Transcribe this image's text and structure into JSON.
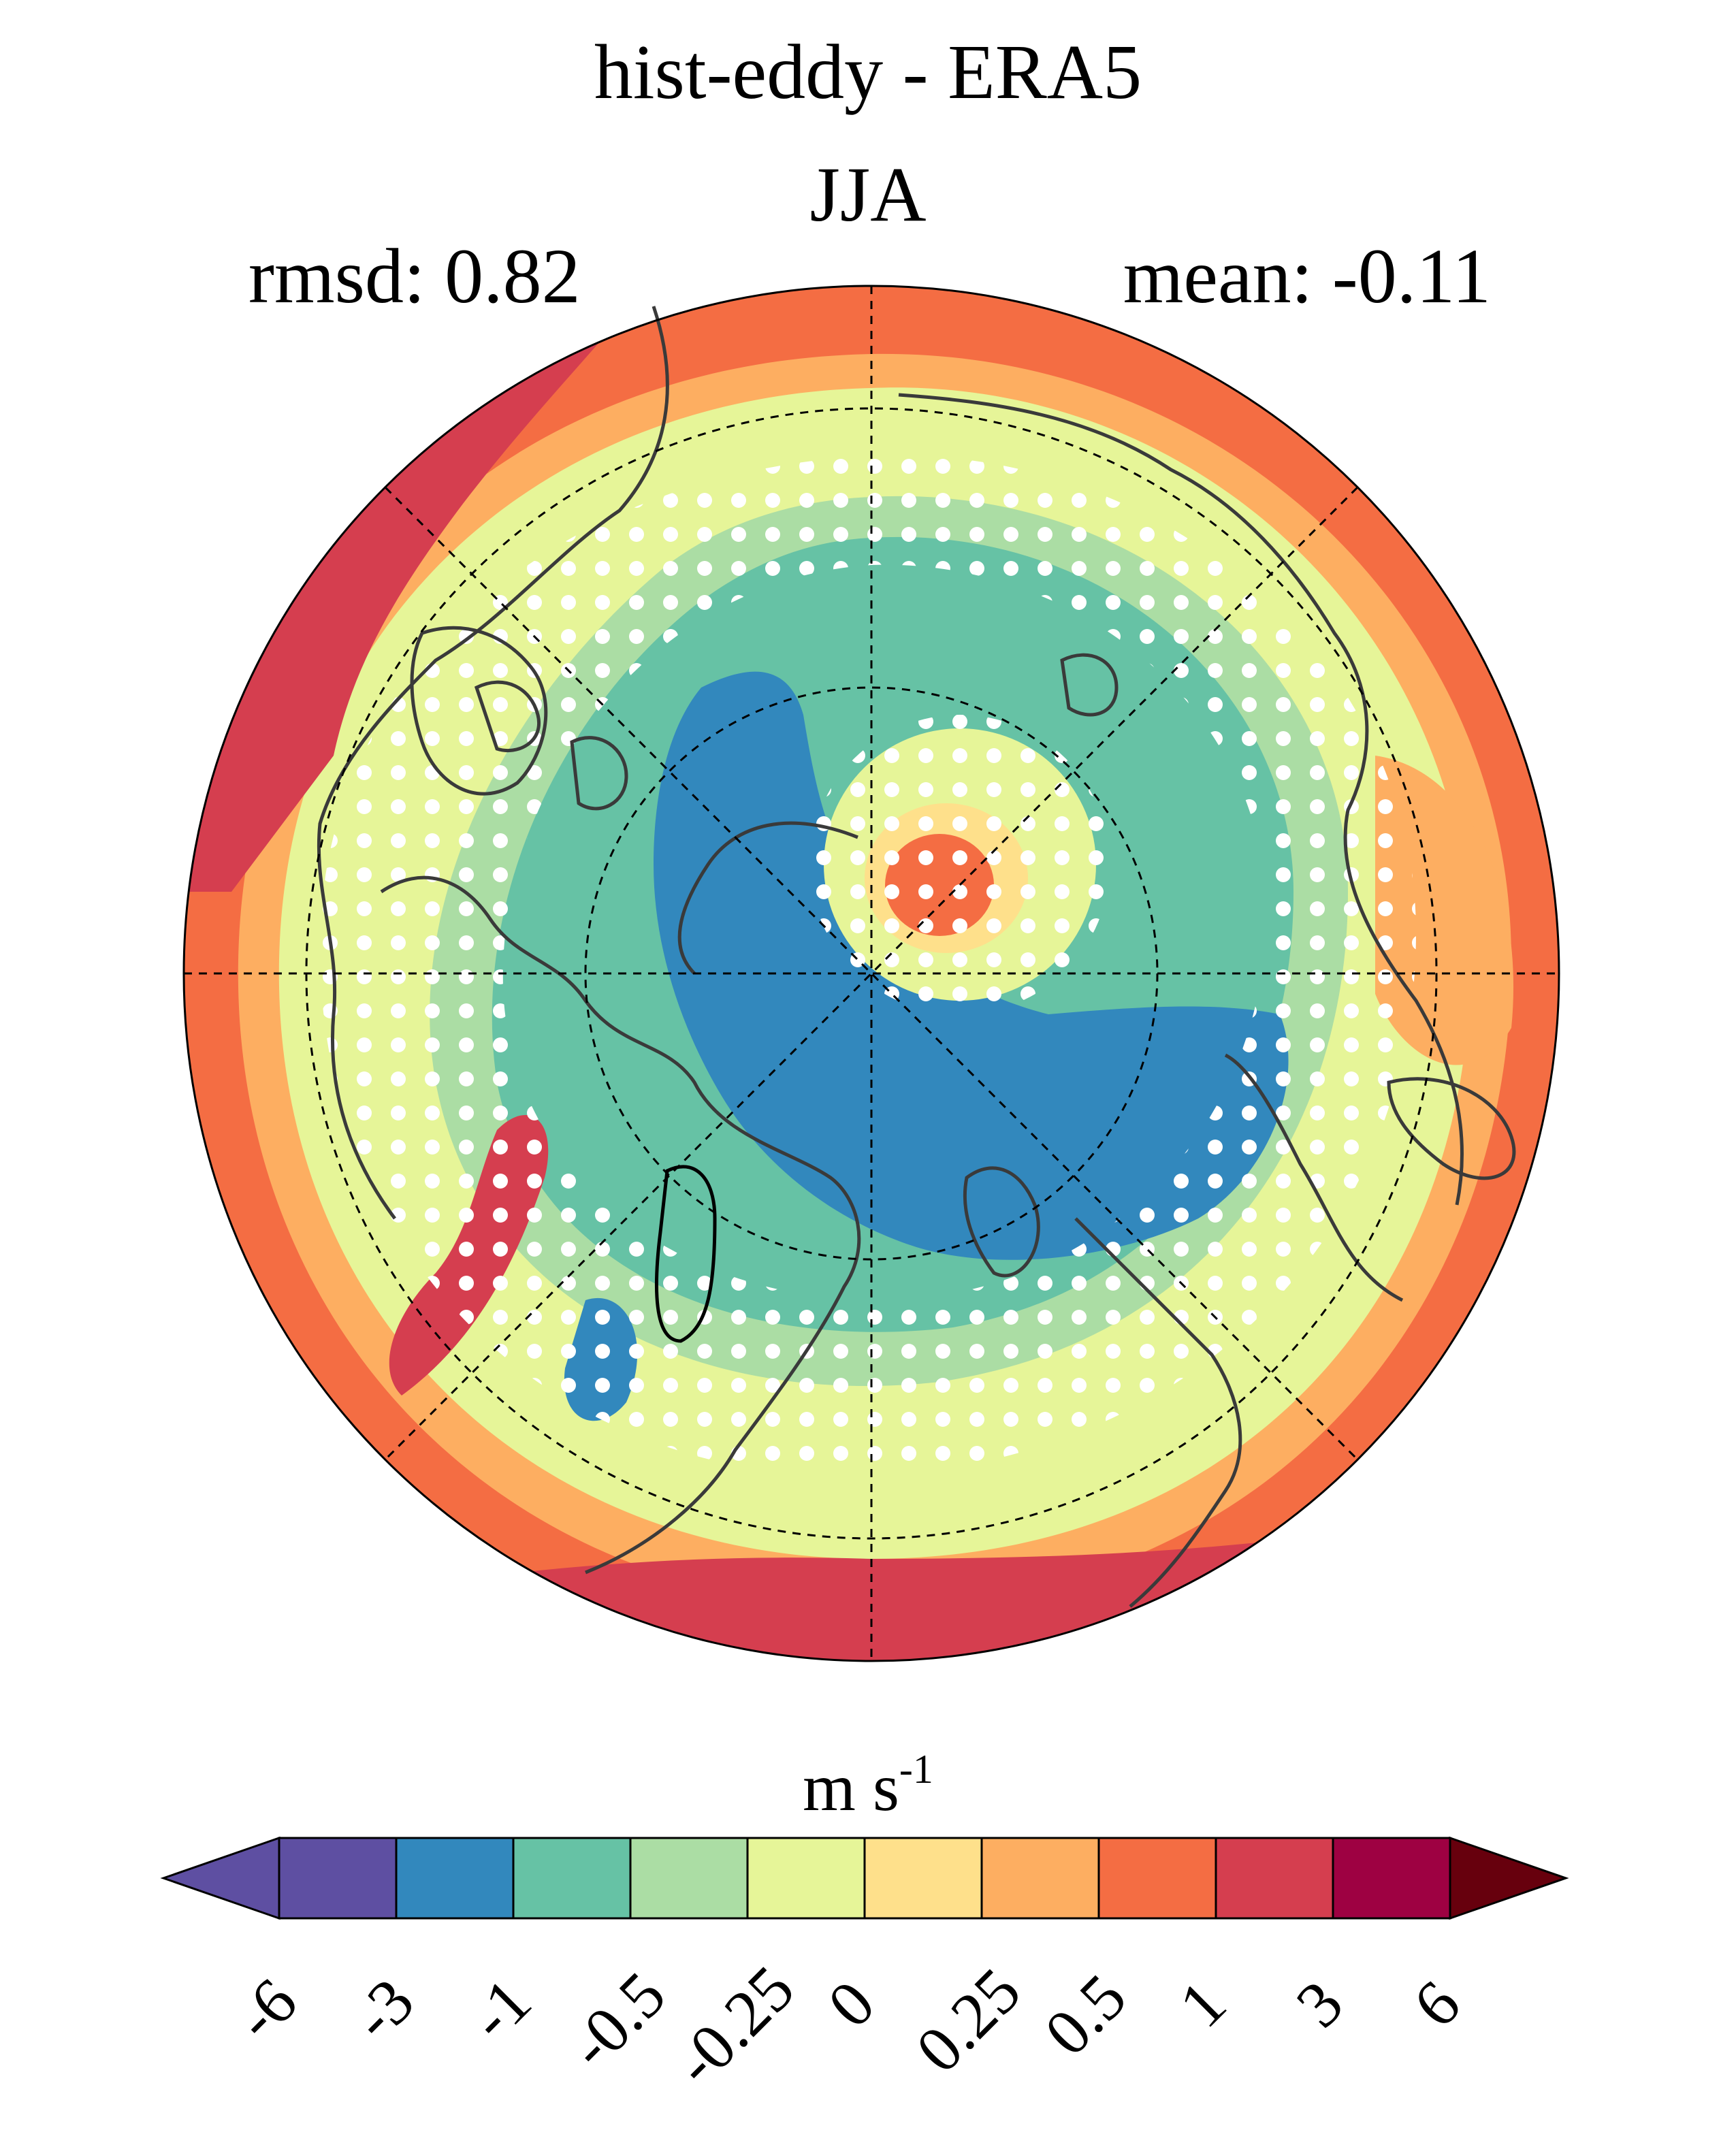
{
  "title": "hist-eddy - ERA5",
  "season": "JJA",
  "rmsd": "rmsd: 0.82",
  "mean": "mean: -0.11",
  "colorbar": {
    "unit_main": "m s",
    "unit_exp": "-1",
    "ticks": [
      "-6",
      "-3",
      "-1",
      "-0.5",
      "-0.25",
      "0",
      "0.25",
      "0.5",
      "1",
      "3",
      "6"
    ],
    "colors": [
      "#5e4fa2",
      "#3288bd",
      "#66c2a5",
      "#abdda4",
      "#e6f598",
      "#fee08b",
      "#fdae61",
      "#f46d43",
      "#d53e4f",
      "#9e0142"
    ],
    "extend_low": "#5e4fa2",
    "extend_high": "#67000d"
  },
  "map": {
    "projection": "north-polar-stereographic",
    "field": "eddy wind speed difference",
    "stippling": "white dots",
    "coastline_color": "#3a3a3a"
  }
}
